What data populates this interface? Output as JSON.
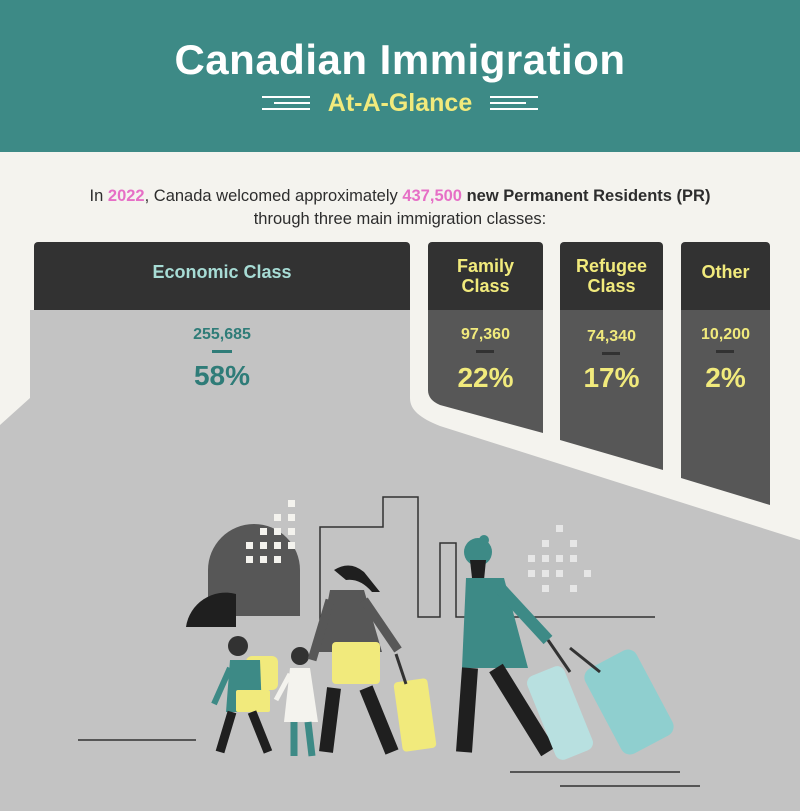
{
  "header": {
    "title": "Canadian Immigration",
    "subtitle": "At-A-Glance"
  },
  "intro": {
    "part1": "In ",
    "year": "2022",
    "part2": ", Canada welcomed approximately ",
    "count": "437,500",
    "part3": " new Permanent Residents (PR)",
    "line2": "through three main immigration classes:"
  },
  "classes": [
    {
      "name": "Economic Class",
      "count": "255,685",
      "percent": "58%",
      "share": 58
    },
    {
      "name_line1": "Family",
      "name_line2": "Class",
      "count": "97,360",
      "percent": "22%",
      "share": 22
    },
    {
      "name_line1": "Refugee",
      "name_line2": "Class",
      "count": "74,340",
      "percent": "17%",
      "share": 17
    },
    {
      "name": "Other",
      "count": "10,200",
      "percent": "2%",
      "share": 2
    }
  ],
  "colors": {
    "header_bg": "#3d8a86",
    "title": "#ffffff",
    "subtitle": "#f1ea7c",
    "highlight": "#e66fc6",
    "economic_text": "#2f7c78",
    "class_text": "#f1ea7c",
    "economic_label": "#a7dcd5",
    "card_head": "#323232",
    "card_body": "#575757",
    "ground": "#c3c3c3"
  },
  "illustration": {
    "icons": [
      "city-skyline-icon",
      "family-travelers-icon",
      "luggage-icon"
    ]
  }
}
